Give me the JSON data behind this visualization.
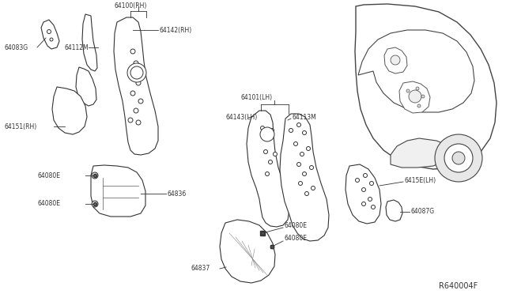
{
  "background_color": "#ffffff",
  "line_color": "#222222",
  "fill_color": "#ffffff",
  "part_outline": "#333333",
  "text_color": "#333333",
  "figsize": [
    6.4,
    3.72
  ],
  "dpi": 100,
  "ref_code": "R640004F",
  "groups": {
    "rh_label": "64100(RH)",
    "rh_sub1": "64112M",
    "rh_sub2": "64142(RH)",
    "rh_small": "64083G",
    "rh_lower": "64151(RH)",
    "ml1": "64080E",
    "ml2": "64080E",
    "ml3": "64836",
    "lh_label": "64101(LH)",
    "lh_sub1": "64143(LH)",
    "lh_sub2": "64113M",
    "lh_right1": "6415E(LH)",
    "lh_right2": "64087G",
    "bc_label": "64837",
    "bc_sub1": "64080E",
    "bc_sub2": "64080E"
  }
}
